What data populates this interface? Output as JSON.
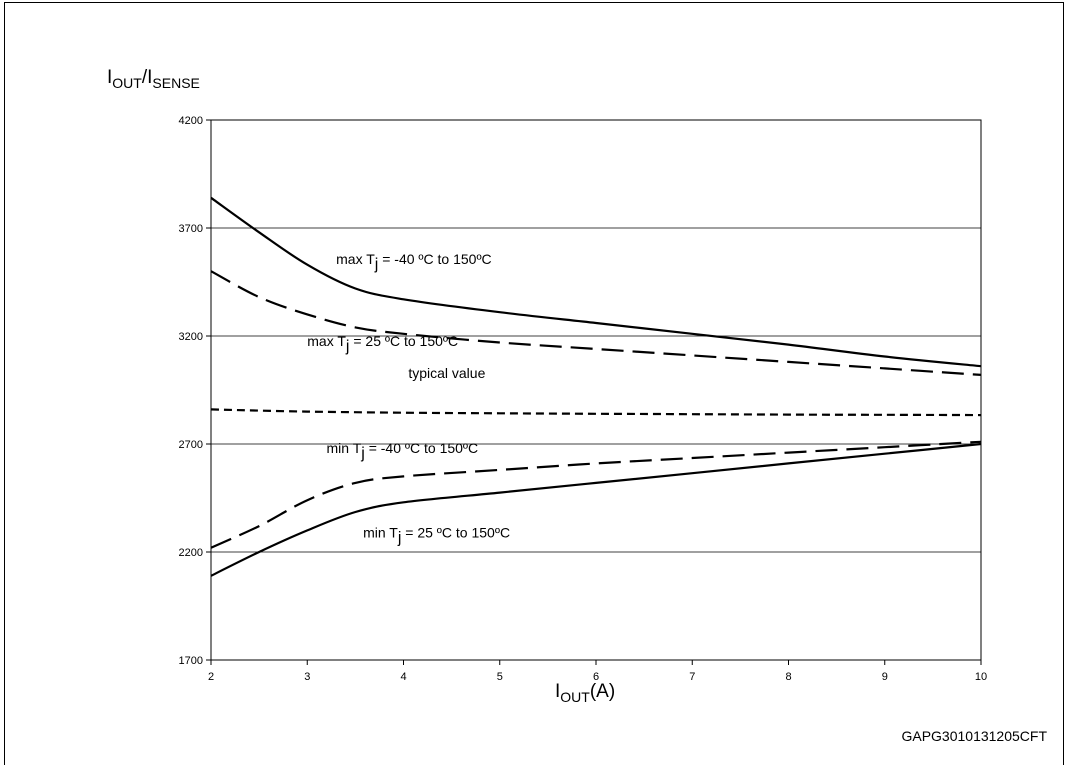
{
  "chart_data": {
    "type": "line",
    "title": "",
    "ylabel": {
      "main": "I",
      "sub1": "OUT",
      "sep": "/I",
      "sub2": "SENSE"
    },
    "xlabel": {
      "main": "I",
      "sub": "OUT",
      "unit": "(A)"
    },
    "x_ticks": [
      "2",
      "3",
      "4",
      "5",
      "6",
      "7",
      "8",
      "9",
      "10"
    ],
    "y_ticks": [
      "1700",
      "2200",
      "2700",
      "3200",
      "3700",
      "4200"
    ],
    "xlim": [
      2,
      10
    ],
    "ylim": [
      1700,
      4200
    ],
    "grid": "horizontal",
    "line_color": "#000000",
    "series": [
      {
        "style": "solid",
        "x": [
          2,
          2.5,
          3,
          3.5,
          4,
          5,
          6,
          7,
          8,
          9,
          10
        ],
        "y": [
          3840,
          3680,
          3530,
          3420,
          3370,
          3310,
          3260,
          3210,
          3160,
          3105,
          3060
        ]
      },
      {
        "style": "dashed",
        "x": [
          2,
          2.5,
          3,
          3.5,
          4,
          5,
          6,
          7,
          8,
          9,
          10
        ],
        "y": [
          3500,
          3380,
          3300,
          3240,
          3210,
          3170,
          3140,
          3110,
          3080,
          3050,
          3020
        ]
      },
      {
        "style": "dotted",
        "x": [
          2,
          3,
          4,
          5,
          6,
          7,
          8,
          9,
          10
        ],
        "y": [
          2860,
          2850,
          2845,
          2842,
          2840,
          2838,
          2836,
          2835,
          2834
        ]
      },
      {
        "style": "dashed",
        "x": [
          2,
          2.5,
          3,
          3.5,
          4,
          5,
          6,
          7,
          8,
          9,
          10
        ],
        "y": [
          2220,
          2320,
          2440,
          2520,
          2550,
          2580,
          2610,
          2635,
          2660,
          2685,
          2710
        ]
      },
      {
        "style": "solid",
        "x": [
          2,
          2.5,
          3,
          3.5,
          4,
          5,
          6,
          7,
          8,
          9,
          10
        ],
        "y": [
          2090,
          2200,
          2300,
          2385,
          2430,
          2475,
          2520,
          2565,
          2610,
          2655,
          2700
        ]
      }
    ],
    "annotations": [
      {
        "id": "max1",
        "pre": "max T",
        "sub": "j",
        "post": " = -40 ºC to 150ºC",
        "x": 3.3,
        "y": 3533
      },
      {
        "id": "max2",
        "pre": "max T",
        "sub": "j",
        "post": " = 25 ºC to 150ºC",
        "x": 3.0,
        "y": 3153
      },
      {
        "id": "typ",
        "pre": "typical value",
        "sub": "",
        "post": "",
        "x": 4.05,
        "y": 3005
      },
      {
        "id": "min1",
        "pre": "min T",
        "sub": "j",
        "post": " = -40 ºC to 150ºC",
        "x": 3.2,
        "y": 2658
      },
      {
        "id": "min2",
        "pre": "min T",
        "sub": "j",
        "post": " = 25 ºC to 150ºC",
        "x": 3.58,
        "y": 2266
      }
    ],
    "figure_code": "GAPG3010131205CFT"
  }
}
